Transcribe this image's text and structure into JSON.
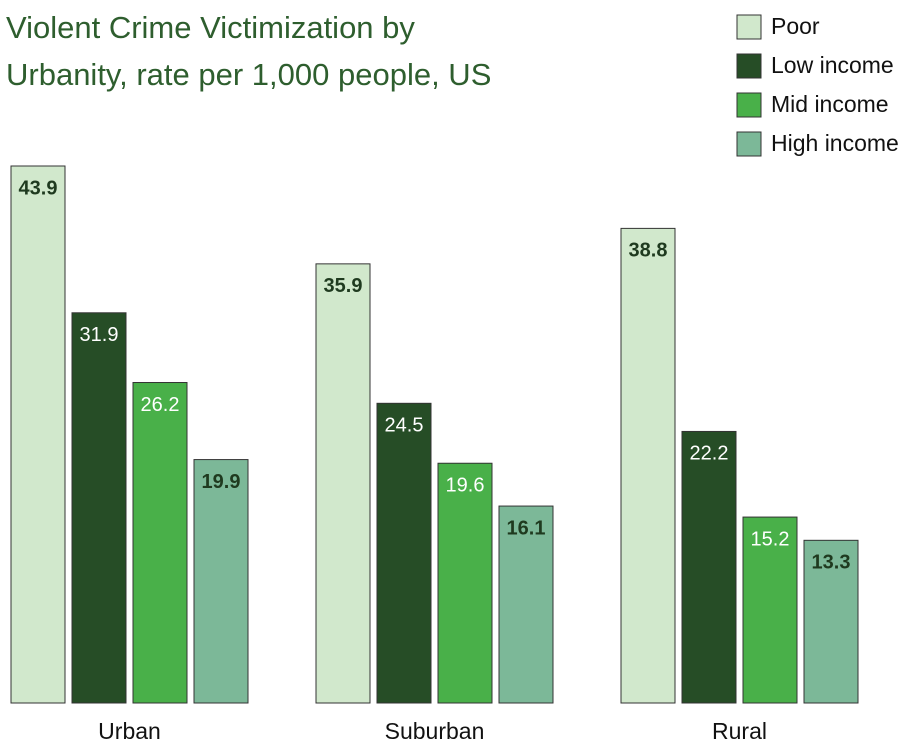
{
  "chart_data": {
    "type": "bar",
    "title_lines": [
      "Violent Crime Victimization by",
      "Urbanity, rate per 1,000 people, US"
    ],
    "categories": [
      "Urban",
      "Suburban",
      "Rural"
    ],
    "series": [
      {
        "name": "Poor",
        "color": "#d1e8cc",
        "label_color": "#1f3a1f",
        "values": [
          43.9,
          35.9,
          38.8
        ]
      },
      {
        "name": "Low income",
        "color": "#264d26",
        "label_color": "#ffffff",
        "values": [
          31.9,
          24.5,
          22.2
        ]
      },
      {
        "name": "Mid income",
        "color": "#49b049",
        "label_color": "#ffffff",
        "values": [
          26.2,
          19.6,
          15.2
        ]
      },
      {
        "name": "High income",
        "color": "#7cb898",
        "label_color": "#1f3a1f",
        "values": [
          19.9,
          16.1,
          13.3
        ]
      }
    ],
    "legend": "top-right"
  }
}
